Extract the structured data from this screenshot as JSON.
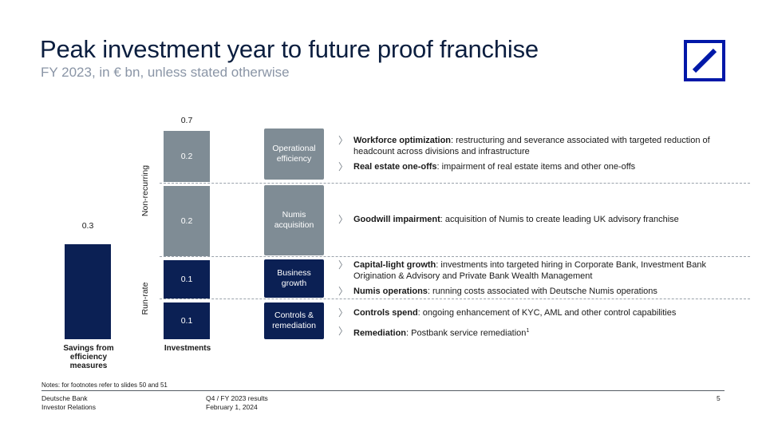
{
  "header": {
    "title": "Peak investment year to future proof franchise",
    "subtitle": "FY 2023, in € bn, unless stated otherwise"
  },
  "colors": {
    "navy": "#0b2054",
    "grey": "#7f8c95",
    "logo_blue": "#0018a8"
  },
  "chart_data": {
    "type": "bar",
    "categories": [
      "Savings from efficiency measures",
      "Investments"
    ],
    "series": [
      {
        "values": [
          0.3,
          null
        ]
      },
      {
        "values": [
          null,
          0.1
        ]
      },
      {
        "values": [
          null,
          0.1
        ]
      },
      {
        "values": [
          null,
          0.2
        ]
      },
      {
        "values": [
          null,
          0.2
        ]
      }
    ],
    "totals": [
      0.3,
      0.7
    ],
    "value_labels": {
      "savings": "0.3",
      "total": "0.7",
      "segments": [
        "0.2",
        "0.2",
        "0.1",
        "0.1"
      ]
    },
    "groups": {
      "non_recurring": "Non-recurring",
      "run_rate": "Run-rate"
    }
  },
  "boxes": [
    {
      "label": "Operational efficiency"
    },
    {
      "label": "Numis acquisition"
    },
    {
      "label": "Business growth"
    },
    {
      "label": "Controls & remediation"
    }
  ],
  "bullets": [
    {
      "bold": "Workforce optimization",
      "text": ": restructuring and severance associated with targeted reduction of headcount across divisions and infrastructure"
    },
    {
      "bold": "Real estate one-offs",
      "text": ": impairment of real estate items and other one-offs"
    },
    {
      "bold": "Goodwill impairment",
      "text": ": acquisition of Numis to create leading UK advisory franchise"
    },
    {
      "bold": "Capital-light growth",
      "text": ": investments into targeted hiring in Corporate Bank, Investment Bank Origination & Advisory and Private Bank Wealth Management"
    },
    {
      "bold": "Numis operations",
      "text": ": running costs associated with Deutsche Numis operations"
    },
    {
      "bold": "Controls spend",
      "text": ": ongoing enhancement of KYC, AML and other control capabilities"
    },
    {
      "bold": "Remediation",
      "text": ": Postbank service remediation",
      "sup": "1"
    }
  ],
  "chevron": "〉",
  "notes": "Notes: for footnotes refer to slides 50 and 51",
  "footer": {
    "company": "Deutsche Bank",
    "department": "Investor Relations",
    "report": "Q4 / FY 2023 results",
    "date": "February 1, 2024",
    "page": "5"
  }
}
